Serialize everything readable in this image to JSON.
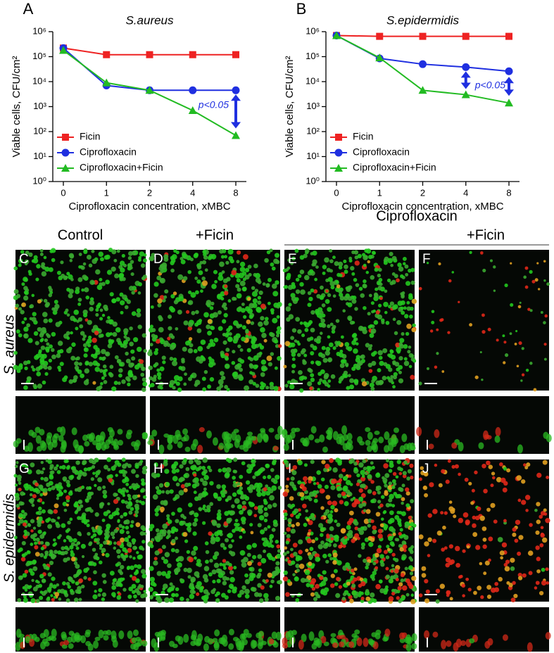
{
  "chart_data": [
    {
      "type": "line",
      "panel_label": "A",
      "title": "S.aureus",
      "y_label": "Viable cells, CFU/cm²",
      "x_label": "Ciprofloxacin concentration, xMBC",
      "categories": [
        "0",
        "1",
        "2",
        "4",
        "8"
      ],
      "log_y": true,
      "ylim": [
        1,
        1000000
      ],
      "yticks": [
        {
          "value": 1,
          "label": "10⁰"
        },
        {
          "value": 10,
          "label": "10¹"
        },
        {
          "value": 100,
          "label": "10²"
        },
        {
          "value": 1000,
          "label": "10³"
        },
        {
          "value": 10000,
          "label": "10⁴"
        },
        {
          "value": 100000,
          "label": "10⁵"
        },
        {
          "value": 1000000,
          "label": "10⁶"
        }
      ],
      "series": [
        {
          "name": "Ficin",
          "color": "#ee2222",
          "marker": "square",
          "values": [
            220000,
            120000,
            120000,
            120000,
            120000
          ]
        },
        {
          "name": "Ciprofloxacin",
          "color": "#1f2fe0",
          "marker": "circle",
          "values": [
            220000,
            7000,
            4500,
            4500,
            4500
          ]
        },
        {
          "name": "Ciprofloxacin+Ficin",
          "color": "#22bb22",
          "marker": "triangle",
          "values": [
            180000,
            9000,
            4500,
            700,
            70
          ]
        }
      ],
      "annotation": "p<0.05"
    },
    {
      "type": "line",
      "panel_label": "B",
      "title": "S.epidermidis",
      "y_label": "Viable cells, CFU/cm²",
      "x_label": "Ciprofloxacin concentration, xMBC",
      "categories": [
        "0",
        "1",
        "2",
        "4",
        "8"
      ],
      "log_y": true,
      "ylim": [
        1,
        1000000
      ],
      "yticks": [
        {
          "value": 1,
          "label": "10⁰"
        },
        {
          "value": 10,
          "label": "10¹"
        },
        {
          "value": 100,
          "label": "10²"
        },
        {
          "value": 1000,
          "label": "10³"
        },
        {
          "value": 10000,
          "label": "10⁴"
        },
        {
          "value": 100000,
          "label": "10⁵"
        },
        {
          "value": 1000000,
          "label": "10⁶"
        }
      ],
      "series": [
        {
          "name": "Ficin",
          "color": "#ee2222",
          "marker": "square",
          "values": [
            700000,
            650000,
            650000,
            650000,
            650000
          ]
        },
        {
          "name": "Ciprofloxacin",
          "color": "#1f2fe0",
          "marker": "circle",
          "values": [
            700000,
            85000,
            50000,
            38000,
            26000
          ]
        },
        {
          "name": "Ciprofloxacin+Ficin",
          "color": "#22bb22",
          "marker": "triangle",
          "values": [
            700000,
            90000,
            4500,
            3000,
            1400
          ]
        }
      ],
      "annotation": "p<0.05"
    }
  ],
  "panels": {
    "headers": {
      "control": "Control",
      "ficin": "+Ficin",
      "cipro": "Ciprofloxacin",
      "cipro_ficin": "+Ficin"
    },
    "rows": [
      "S. aureus",
      "S. epidermidis"
    ],
    "labels": [
      "C",
      "D",
      "E",
      "F",
      "G",
      "H",
      "I",
      "J"
    ]
  }
}
